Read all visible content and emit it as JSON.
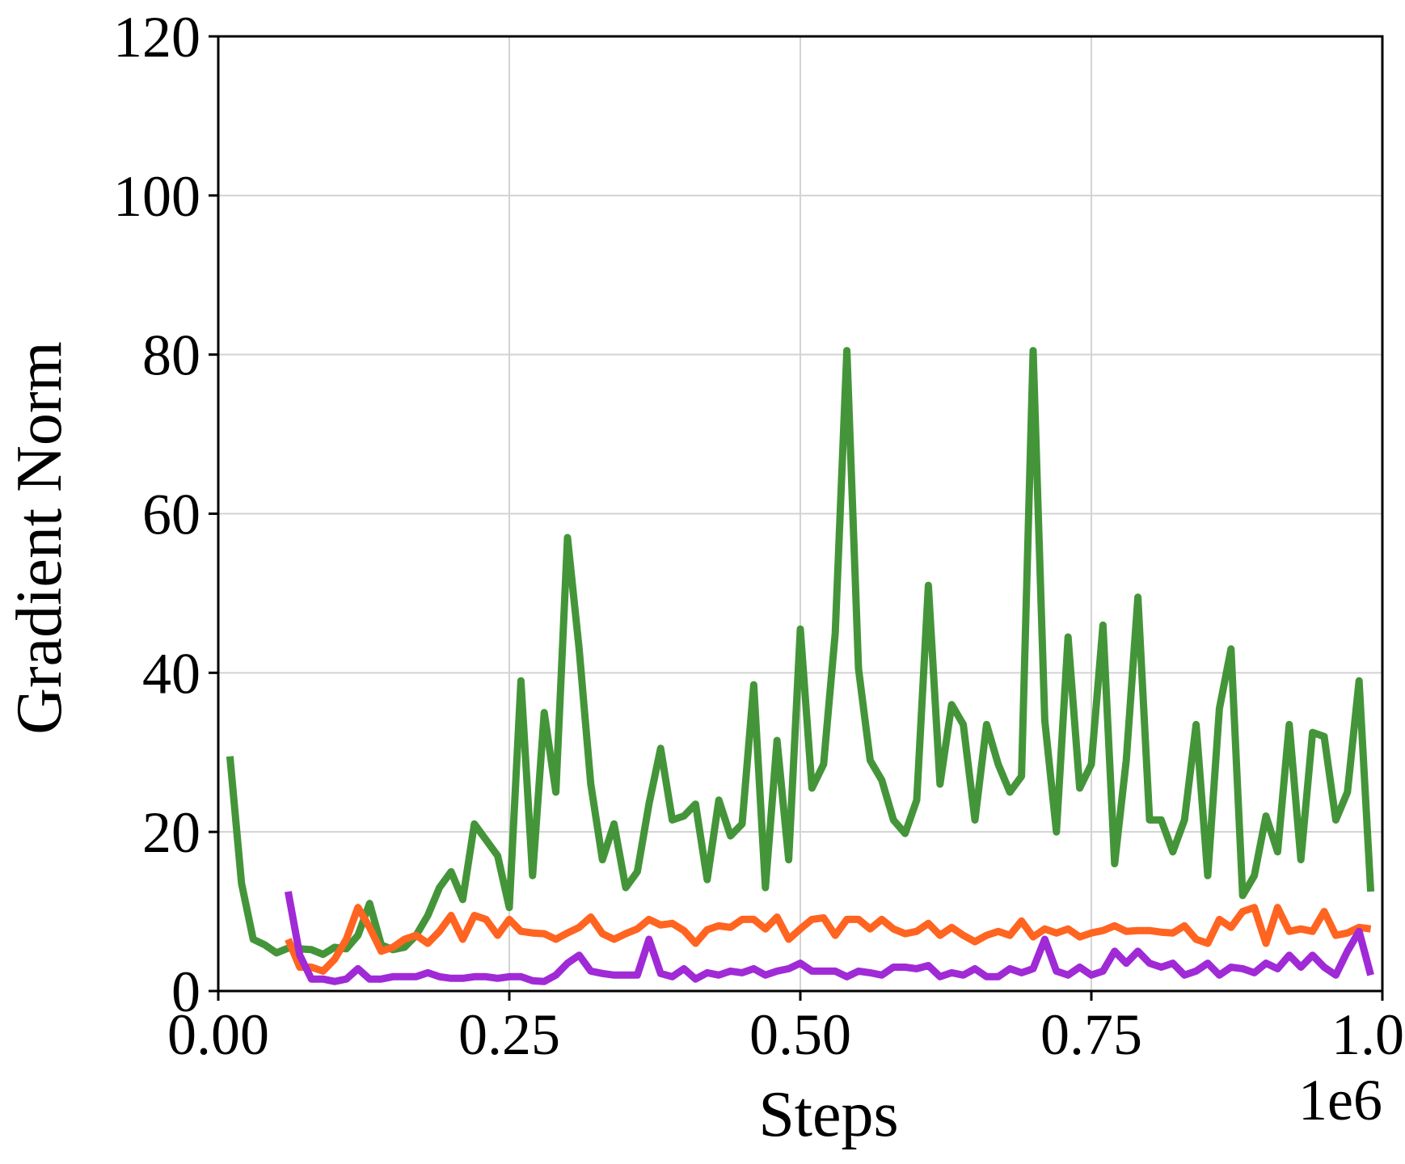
{
  "chart_data": {
    "type": "line",
    "xlabel": "Steps",
    "ylabel": "Gradient Norm",
    "x_offset_label": "1e6",
    "xlim": [
      0,
      1.0
    ],
    "ylim": [
      0,
      120
    ],
    "x_ticks": [
      0.0,
      0.25,
      0.5,
      0.75,
      1.0
    ],
    "x_tick_labels": [
      "0.00",
      "0.25",
      "0.50",
      "0.75",
      "1.00"
    ],
    "y_ticks": [
      0,
      20,
      40,
      60,
      80,
      100,
      120
    ],
    "y_tick_labels": [
      "0",
      "20",
      "40",
      "60",
      "80",
      "100",
      "120"
    ],
    "grid": true,
    "series": [
      {
        "color": "#3a8f2e",
        "points": [
          [
            0.01,
            29.5
          ],
          [
            0.02,
            13.5
          ],
          [
            0.03,
            6.5
          ],
          [
            0.04,
            5.8
          ],
          [
            0.05,
            4.8
          ],
          [
            0.06,
            5.4
          ],
          [
            0.07,
            5.3
          ],
          [
            0.08,
            5.2
          ],
          [
            0.09,
            4.6
          ],
          [
            0.1,
            5.5
          ],
          [
            0.11,
            5.3
          ],
          [
            0.12,
            7.0
          ],
          [
            0.13,
            11.0
          ],
          [
            0.14,
            5.8
          ],
          [
            0.15,
            5.2
          ],
          [
            0.16,
            5.5
          ],
          [
            0.17,
            7.0
          ],
          [
            0.18,
            9.5
          ],
          [
            0.19,
            13.0
          ],
          [
            0.2,
            15.0
          ],
          [
            0.21,
            11.5
          ],
          [
            0.22,
            21.0
          ],
          [
            0.23,
            19.0
          ],
          [
            0.24,
            17.0
          ],
          [
            0.25,
            10.5
          ],
          [
            0.26,
            39.0
          ],
          [
            0.27,
            14.5
          ],
          [
            0.28,
            35.0
          ],
          [
            0.29,
            25.0
          ],
          [
            0.3,
            57.0
          ],
          [
            0.31,
            43.0
          ],
          [
            0.32,
            26.0
          ],
          [
            0.33,
            16.5
          ],
          [
            0.34,
            21.0
          ],
          [
            0.35,
            13.0
          ],
          [
            0.36,
            15.0
          ],
          [
            0.37,
            23.5
          ],
          [
            0.38,
            30.5
          ],
          [
            0.39,
            21.5
          ],
          [
            0.4,
            22.0
          ],
          [
            0.41,
            23.5
          ],
          [
            0.42,
            14.0
          ],
          [
            0.43,
            24.0
          ],
          [
            0.44,
            19.5
          ],
          [
            0.45,
            21.0
          ],
          [
            0.46,
            38.5
          ],
          [
            0.47,
            13.0
          ],
          [
            0.48,
            31.5
          ],
          [
            0.49,
            16.5
          ],
          [
            0.5,
            45.5
          ],
          [
            0.51,
            25.5
          ],
          [
            0.52,
            28.5
          ],
          [
            0.53,
            45.0
          ],
          [
            0.54,
            80.5
          ],
          [
            0.55,
            40.5
          ],
          [
            0.56,
            29.0
          ],
          [
            0.57,
            26.5
          ],
          [
            0.58,
            21.5
          ],
          [
            0.59,
            19.8
          ],
          [
            0.6,
            24.0
          ],
          [
            0.61,
            51.0
          ],
          [
            0.62,
            26.0
          ],
          [
            0.63,
            36.0
          ],
          [
            0.64,
            33.5
          ],
          [
            0.65,
            21.5
          ],
          [
            0.66,
            33.5
          ],
          [
            0.67,
            28.5
          ],
          [
            0.68,
            25.0
          ],
          [
            0.69,
            27.0
          ],
          [
            0.7,
            80.5
          ],
          [
            0.71,
            34.0
          ],
          [
            0.72,
            20.0
          ],
          [
            0.73,
            44.5
          ],
          [
            0.74,
            25.5
          ],
          [
            0.75,
            28.5
          ],
          [
            0.76,
            46.0
          ],
          [
            0.77,
            16.0
          ],
          [
            0.78,
            29.0
          ],
          [
            0.79,
            49.5
          ],
          [
            0.8,
            21.5
          ],
          [
            0.81,
            21.5
          ],
          [
            0.82,
            17.5
          ],
          [
            0.83,
            21.5
          ],
          [
            0.84,
            33.5
          ],
          [
            0.85,
            14.5
          ],
          [
            0.86,
            35.5
          ],
          [
            0.87,
            43.0
          ],
          [
            0.88,
            12.0
          ],
          [
            0.89,
            14.5
          ],
          [
            0.9,
            22.0
          ],
          [
            0.91,
            17.5
          ],
          [
            0.92,
            33.5
          ],
          [
            0.93,
            16.5
          ],
          [
            0.94,
            32.5
          ],
          [
            0.95,
            32.0
          ],
          [
            0.96,
            21.5
          ],
          [
            0.97,
            25.0
          ],
          [
            0.98,
            39.0
          ],
          [
            0.99,
            12.5
          ]
        ]
      },
      {
        "color": "#ff6420",
        "points": [
          [
            0.06,
            6.5
          ],
          [
            0.07,
            3.0
          ],
          [
            0.08,
            3.0
          ],
          [
            0.09,
            2.5
          ],
          [
            0.1,
            4.0
          ],
          [
            0.11,
            6.5
          ],
          [
            0.12,
            10.5
          ],
          [
            0.13,
            8.0
          ],
          [
            0.14,
            5.0
          ],
          [
            0.15,
            5.5
          ],
          [
            0.16,
            6.5
          ],
          [
            0.17,
            7.0
          ],
          [
            0.18,
            6.0
          ],
          [
            0.19,
            7.5
          ],
          [
            0.2,
            9.5
          ],
          [
            0.21,
            6.5
          ],
          [
            0.22,
            9.5
          ],
          [
            0.23,
            9.0
          ],
          [
            0.24,
            7.0
          ],
          [
            0.25,
            9.0
          ],
          [
            0.26,
            7.5
          ],
          [
            0.27,
            7.3
          ],
          [
            0.28,
            7.2
          ],
          [
            0.29,
            6.5
          ],
          [
            0.3,
            7.3
          ],
          [
            0.31,
            8.0
          ],
          [
            0.32,
            9.3
          ],
          [
            0.33,
            7.2
          ],
          [
            0.34,
            6.5
          ],
          [
            0.35,
            7.2
          ],
          [
            0.36,
            7.8
          ],
          [
            0.37,
            9.0
          ],
          [
            0.38,
            8.3
          ],
          [
            0.39,
            8.5
          ],
          [
            0.4,
            7.6
          ],
          [
            0.41,
            6.0
          ],
          [
            0.42,
            7.7
          ],
          [
            0.43,
            8.2
          ],
          [
            0.44,
            8.0
          ],
          [
            0.45,
            9.0
          ],
          [
            0.46,
            9.0
          ],
          [
            0.47,
            7.8
          ],
          [
            0.48,
            9.3
          ],
          [
            0.49,
            6.5
          ],
          [
            0.5,
            7.8
          ],
          [
            0.51,
            9.0
          ],
          [
            0.52,
            9.2
          ],
          [
            0.53,
            7.0
          ],
          [
            0.54,
            9.0
          ],
          [
            0.55,
            9.0
          ],
          [
            0.56,
            7.8
          ],
          [
            0.57,
            9.0
          ],
          [
            0.58,
            7.8
          ],
          [
            0.59,
            7.2
          ],
          [
            0.6,
            7.5
          ],
          [
            0.61,
            8.5
          ],
          [
            0.62,
            7.0
          ],
          [
            0.63,
            8.0
          ],
          [
            0.64,
            7.0
          ],
          [
            0.65,
            6.2
          ],
          [
            0.66,
            7.0
          ],
          [
            0.67,
            7.5
          ],
          [
            0.68,
            7.0
          ],
          [
            0.69,
            8.8
          ],
          [
            0.7,
            6.8
          ],
          [
            0.71,
            7.8
          ],
          [
            0.72,
            7.3
          ],
          [
            0.73,
            7.8
          ],
          [
            0.74,
            6.8
          ],
          [
            0.75,
            7.3
          ],
          [
            0.76,
            7.6
          ],
          [
            0.77,
            8.2
          ],
          [
            0.78,
            7.5
          ],
          [
            0.79,
            7.6
          ],
          [
            0.8,
            7.6
          ],
          [
            0.81,
            7.4
          ],
          [
            0.82,
            7.3
          ],
          [
            0.83,
            8.2
          ],
          [
            0.84,
            6.5
          ],
          [
            0.85,
            6.0
          ],
          [
            0.86,
            9.0
          ],
          [
            0.87,
            8.0
          ],
          [
            0.88,
            10.0
          ],
          [
            0.89,
            10.5
          ],
          [
            0.9,
            6.0
          ],
          [
            0.91,
            10.5
          ],
          [
            0.92,
            7.5
          ],
          [
            0.93,
            7.8
          ],
          [
            0.94,
            7.5
          ],
          [
            0.95,
            10.0
          ],
          [
            0.96,
            7.0
          ],
          [
            0.97,
            7.3
          ],
          [
            0.98,
            8.0
          ],
          [
            0.99,
            7.8
          ]
        ]
      },
      {
        "color": "#a02ad6",
        "points": [
          [
            0.06,
            12.5
          ],
          [
            0.07,
            4.5
          ],
          [
            0.08,
            1.5
          ],
          [
            0.09,
            1.5
          ],
          [
            0.1,
            1.2
          ],
          [
            0.11,
            1.5
          ],
          [
            0.12,
            2.8
          ],
          [
            0.13,
            1.5
          ],
          [
            0.14,
            1.5
          ],
          [
            0.15,
            1.8
          ],
          [
            0.16,
            1.8
          ],
          [
            0.17,
            1.8
          ],
          [
            0.18,
            2.3
          ],
          [
            0.19,
            1.8
          ],
          [
            0.2,
            1.6
          ],
          [
            0.21,
            1.6
          ],
          [
            0.22,
            1.8
          ],
          [
            0.23,
            1.8
          ],
          [
            0.24,
            1.6
          ],
          [
            0.25,
            1.8
          ],
          [
            0.26,
            1.8
          ],
          [
            0.27,
            1.3
          ],
          [
            0.28,
            1.2
          ],
          [
            0.29,
            2.0
          ],
          [
            0.3,
            3.5
          ],
          [
            0.31,
            4.5
          ],
          [
            0.32,
            2.5
          ],
          [
            0.33,
            2.2
          ],
          [
            0.34,
            2.0
          ],
          [
            0.35,
            2.0
          ],
          [
            0.36,
            2.0
          ],
          [
            0.37,
            6.5
          ],
          [
            0.38,
            2.2
          ],
          [
            0.39,
            1.8
          ],
          [
            0.4,
            2.8
          ],
          [
            0.41,
            1.5
          ],
          [
            0.42,
            2.3
          ],
          [
            0.43,
            2.0
          ],
          [
            0.44,
            2.5
          ],
          [
            0.45,
            2.3
          ],
          [
            0.46,
            2.8
          ],
          [
            0.47,
            2.0
          ],
          [
            0.48,
            2.5
          ],
          [
            0.49,
            2.8
          ],
          [
            0.5,
            3.5
          ],
          [
            0.51,
            2.5
          ],
          [
            0.52,
            2.5
          ],
          [
            0.53,
            2.5
          ],
          [
            0.54,
            1.8
          ],
          [
            0.55,
            2.5
          ],
          [
            0.56,
            2.3
          ],
          [
            0.57,
            2.0
          ],
          [
            0.58,
            3.0
          ],
          [
            0.59,
            3.0
          ],
          [
            0.6,
            2.8
          ],
          [
            0.61,
            3.2
          ],
          [
            0.62,
            1.8
          ],
          [
            0.63,
            2.3
          ],
          [
            0.64,
            2.0
          ],
          [
            0.65,
            2.8
          ],
          [
            0.66,
            1.8
          ],
          [
            0.67,
            1.8
          ],
          [
            0.68,
            2.8
          ],
          [
            0.69,
            2.3
          ],
          [
            0.7,
            2.8
          ],
          [
            0.71,
            6.5
          ],
          [
            0.72,
            2.5
          ],
          [
            0.73,
            2.0
          ],
          [
            0.74,
            3.0
          ],
          [
            0.75,
            2.0
          ],
          [
            0.76,
            2.5
          ],
          [
            0.77,
            5.0
          ],
          [
            0.78,
            3.5
          ],
          [
            0.79,
            5.0
          ],
          [
            0.8,
            3.5
          ],
          [
            0.81,
            3.0
          ],
          [
            0.82,
            3.5
          ],
          [
            0.83,
            2.0
          ],
          [
            0.84,
            2.5
          ],
          [
            0.85,
            3.5
          ],
          [
            0.86,
            2.0
          ],
          [
            0.87,
            3.0
          ],
          [
            0.88,
            2.8
          ],
          [
            0.89,
            2.3
          ],
          [
            0.9,
            3.5
          ],
          [
            0.91,
            2.8
          ],
          [
            0.92,
            4.5
          ],
          [
            0.93,
            3.0
          ],
          [
            0.94,
            4.5
          ],
          [
            0.95,
            3.0
          ],
          [
            0.96,
            2.0
          ],
          [
            0.97,
            5.0
          ],
          [
            0.98,
            7.5
          ],
          [
            0.99,
            2.0
          ]
        ]
      }
    ]
  }
}
